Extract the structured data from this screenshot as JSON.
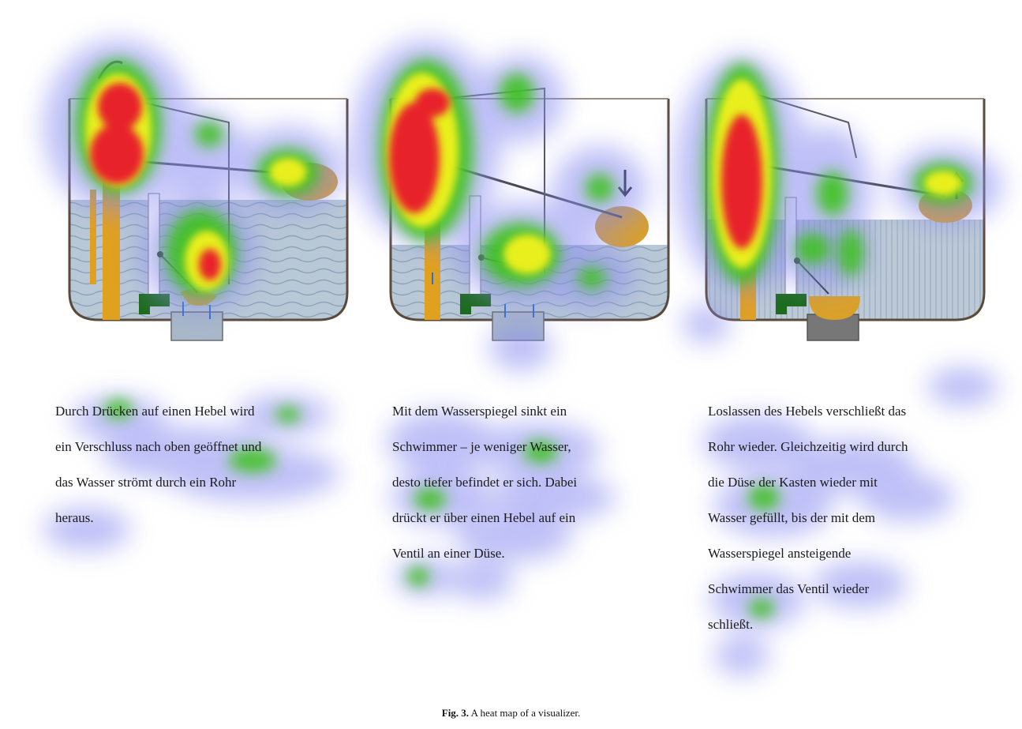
{
  "panels": [
    {
      "id": "panel-1",
      "text_lines": [
        "Durch Drücken auf einen Hebel wird",
        "ein Verschluss nach oben geöffnet und",
        "das Wasser strömt durch ein Rohr",
        "heraus."
      ]
    },
    {
      "id": "panel-2",
      "text_lines": [
        "Mit dem Wasserspiegel sinkt ein",
        "Schwimmer – je weniger Wasser,",
        "desto tiefer befindet er sich. Dabei",
        "drückt er über einen Hebel auf ein",
        "Ventil an einer Düse."
      ]
    },
    {
      "id": "panel-3",
      "text_lines": [
        "Loslassen des Hebels verschließt das",
        "Rohr wieder. Gleichzeitig wird durch",
        "die Düse der Kasten wieder mit",
        "Wasser gefüllt, bis der mit dem",
        "Wasserspiegel ansteigende",
        "Schwimmer das Ventil wieder",
        "schließt."
      ]
    }
  ],
  "caption": {
    "label": "Fig. 3.",
    "text": "A heat map of a visualizer."
  },
  "colors": {
    "water": "#b9c8d6",
    "tank_outline": "#5a4a3a",
    "float": "#d9a02a",
    "pipe": "#e0a020",
    "heat_red": "#e8202a",
    "heat_yellow": "#f2f21a",
    "heat_green": "#3cc21e",
    "heat_blue": "#8a8cf0"
  }
}
